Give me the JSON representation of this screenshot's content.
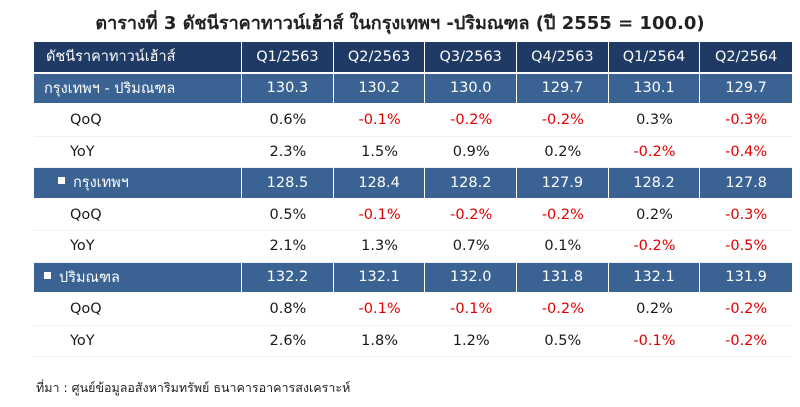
{
  "title": "ตารางที่ 3 ดัชนีราคาทาวน์เฮ้าส์ ในกรุงเทพฯ -ปริมณฑล (ปี 2555 = 100.0)",
  "header": {
    "first": "ดัชนีราคาทาวน์เฮ้าส์",
    "periods": [
      "Q1/2563",
      "Q2/2563",
      "Q3/2563",
      "Q4/2563",
      "Q1/2564",
      "Q2/2564"
    ]
  },
  "groups": [
    {
      "label": "กรุงเทพฯ - ปริมณฑล",
      "values": [
        "130.3",
        "130.2",
        "130.0",
        "129.7",
        "130.1",
        "129.7"
      ],
      "qoq_label": "QoQ",
      "qoq": [
        "0.6%",
        "-0.1%",
        "-0.2%",
        "-0.2%",
        "0.3%",
        "-0.3%"
      ],
      "yoy_label": "YoY",
      "yoy": [
        "2.3%",
        "1.5%",
        "0.9%",
        "0.2%",
        "-0.2%",
        "-0.4%"
      ]
    },
    {
      "label": "กรุงเทพฯ",
      "values": [
        "128.5",
        "128.4",
        "128.2",
        "127.9",
        "128.2",
        "127.8"
      ],
      "qoq_label": "QoQ",
      "qoq": [
        "0.5%",
        "-0.1%",
        "-0.2%",
        "-0.2%",
        "0.2%",
        "-0.3%"
      ],
      "yoy_label": "YoY",
      "yoy": [
        "2.1%",
        "1.3%",
        "0.7%",
        "0.1%",
        "-0.2%",
        "-0.5%"
      ]
    },
    {
      "label": "ปริมณฑล",
      "values": [
        "132.2",
        "132.1",
        "132.0",
        "131.8",
        "132.1",
        "131.9"
      ],
      "qoq_label": "QoQ",
      "qoq": [
        "0.8%",
        "-0.1%",
        "-0.1%",
        "-0.2%",
        "0.2%",
        "-0.2%"
      ],
      "yoy_label": "YoY",
      "yoy": [
        "2.6%",
        "1.8%",
        "1.2%",
        "0.5%",
        "-0.1%",
        "-0.2%"
      ]
    }
  ],
  "source": "ที่มา : ศูนย์ข้อมูลอสังหาริมทรัพย์ ธนาคารอาคารสงเคราะห์",
  "colors": {
    "header_bg": "#1f3a64",
    "group_bg": "#3a6393",
    "negative": "#e00000"
  }
}
